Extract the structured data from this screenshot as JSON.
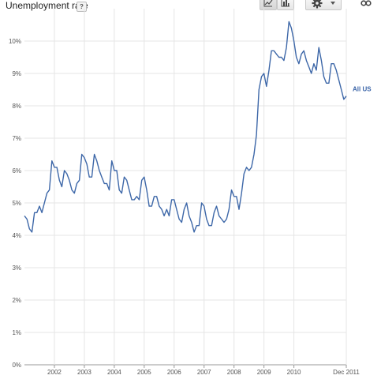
{
  "header": {
    "title": "Unemployment rate",
    "help_label": "?"
  },
  "toolbar": {
    "buttons": [
      "line-chart-icon",
      "bar-chart-icon",
      "gear-icon",
      "chevron-down-icon",
      "link-icon"
    ]
  },
  "colors": {
    "series": "#3d67a8",
    "grid": "#e5e5e5",
    "axis": "#999999"
  },
  "chart_data": {
    "type": "line",
    "ylim": [
      0,
      11
    ],
    "y_ticks": [
      "0%",
      "1%",
      "2%",
      "3%",
      "4%",
      "5%",
      "6%",
      "7%",
      "8%",
      "9%",
      "10%"
    ],
    "x_ticks": [
      "2002",
      "2003",
      "2004",
      "2005",
      "2006",
      "2007",
      "2008",
      "2009",
      "2010",
      "Dec 2011"
    ],
    "series": [
      {
        "name": "All US",
        "start": "2001-01",
        "frequency": "monthly",
        "values": [
          4.6,
          4.5,
          4.2,
          4.1,
          4.7,
          4.7,
          4.9,
          4.7,
          5.0,
          5.3,
          5.4,
          6.3,
          6.1,
          6.1,
          5.7,
          5.5,
          6.0,
          5.9,
          5.7,
          5.4,
          5.3,
          5.6,
          5.7,
          6.5,
          6.4,
          6.2,
          5.8,
          5.8,
          6.5,
          6.3,
          6.0,
          5.8,
          5.6,
          5.6,
          5.4,
          6.3,
          6.0,
          6.0,
          5.4,
          5.3,
          5.8,
          5.7,
          5.4,
          5.1,
          5.1,
          5.2,
          5.1,
          5.7,
          5.8,
          5.4,
          4.9,
          4.9,
          5.2,
          5.2,
          4.9,
          4.8,
          4.6,
          4.8,
          4.6,
          5.1,
          5.1,
          4.8,
          4.5,
          4.4,
          4.8,
          5.0,
          4.6,
          4.4,
          4.1,
          4.3,
          4.3,
          5.0,
          4.9,
          4.5,
          4.3,
          4.3,
          4.7,
          4.9,
          4.6,
          4.5,
          4.4,
          4.5,
          4.8,
          5.4,
          5.2,
          5.2,
          4.8,
          5.3,
          5.9,
          6.1,
          6.0,
          6.1,
          6.5,
          7.1,
          8.5,
          8.9,
          9.0,
          8.6,
          9.1,
          9.7,
          9.7,
          9.6,
          9.5,
          9.5,
          9.4,
          9.8,
          10.6,
          10.4,
          10.0,
          9.5,
          9.3,
          9.6,
          9.7,
          9.4,
          9.2,
          9.0,
          9.3,
          9.1,
          9.8,
          9.4,
          8.9,
          8.7,
          8.7,
          9.3,
          9.3,
          9.1,
          8.8,
          8.5,
          8.2,
          8.3
        ]
      }
    ]
  }
}
